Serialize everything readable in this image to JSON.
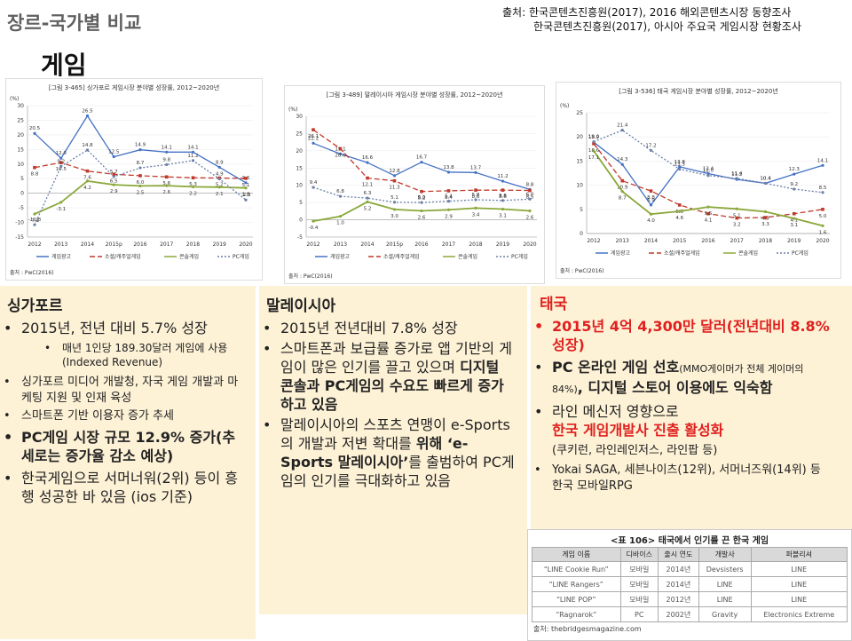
{
  "header": {
    "top_label": "장르-국가별 비교",
    "title": "게임",
    "source_line1": "출처: 한국콘텐츠진흥원(2017), 2016 해외콘텐츠시장 동향조사",
    "source_line2": "한국콘텐츠진흥원(2017), 아시아 주요국 게임시장 현황조사"
  },
  "legend": {
    "pc_online": "게임광고",
    "mobile": "소셜/캐주얼게임",
    "console": "콘솔게임",
    "pc": "PC게임"
  },
  "chart_data": [
    {
      "type": "line",
      "title": "[그림 3-465] 싱가포르 게임시장 분야별 성장률, 2012~2020년",
      "unit": "(%)",
      "x": [
        "2012",
        "2013",
        "2014",
        "2015p",
        "2016",
        "2017",
        "2018",
        "2019",
        "2020"
      ],
      "ylim": [
        -15,
        30
      ],
      "yticks": [
        "30",
        "25",
        "20",
        "15",
        "10",
        "5",
        "0",
        "-5",
        "-10",
        "-15"
      ],
      "source": "출처 : PwC(2016)",
      "series": [
        {
          "name": "게임광고",
          "color": "#4472c4",
          "values": [
            20.5,
            12.0,
            26.5,
            12.5,
            14.9,
            14.1,
            14.1,
            8.9,
            3.6
          ],
          "labels": [
            "20.5",
            "12.0",
            "26.5",
            "12.5",
            "14.9",
            "14.1",
            "14.1",
            "8.9",
            "3.6"
          ]
        },
        {
          "name": "소셜/캐주얼게임",
          "color": "#c0392b",
          "values": [
            8.8,
            10.5,
            7.6,
            6.5,
            6.0,
            5.6,
            5.3,
            5.2,
            5.1
          ],
          "labels": [
            "8.8",
            "10.5",
            "7.6",
            "6.5",
            "6.0",
            "5.6",
            "5.3",
            "5.2",
            "5.1"
          ]
        },
        {
          "name": "콘솔게임",
          "color": "#8aa83a",
          "values": [
            -7.1,
            -3.1,
            4.2,
            2.9,
            2.5,
            2.6,
            2.2,
            2.1,
            1.8
          ],
          "labels": [
            "-7.1",
            "-3.1",
            "4.2",
            "2.9",
            "2.5",
            "2.6",
            "2.2",
            "2.1",
            "1.8"
          ]
        },
        {
          "name": "PC게임",
          "color": "#6b7fa8",
          "values": [
            -10.8,
            9.2,
            14.8,
            5.7,
            8.7,
            9.8,
            11.2,
            4.9,
            -2.3
          ],
          "labels": [
            "-10.8",
            "9.2",
            "14.8",
            "5.7",
            "8.7",
            "9.8",
            "11.2",
            "4.9",
            "-2.3"
          ]
        }
      ]
    },
    {
      "type": "line",
      "title": "[그림 3-489] 말레이시아 게임시장 분야별 성장률, 2012~2020년",
      "unit": "(%)",
      "x": [
        "2012",
        "2013",
        "2014",
        "2015p",
        "2016",
        "2017",
        "2018",
        "2019",
        "2020"
      ],
      "ylim": [
        -5,
        30
      ],
      "yticks": [
        "30",
        "25",
        "20",
        "15",
        "10",
        "5",
        "0",
        "-5"
      ],
      "source": "출처 : PwC(2016)",
      "series": [
        {
          "name": "게임광고",
          "color": "#4472c4",
          "values": [
            22.2,
            19.1,
            16.6,
            12.8,
            16.7,
            13.8,
            13.7,
            11.2,
            8.8
          ],
          "labels": [
            "22.2",
            "19.1",
            "16.6",
            "12.8",
            "16.7",
            "13.8",
            "13.7",
            "11.2",
            "8.8"
          ]
        },
        {
          "name": "소셜/캐주얼게임",
          "color": "#c0392b",
          "values": [
            26.1,
            20.6,
            12.1,
            11.3,
            8.2,
            8.4,
            8.6,
            8.6,
            8.5
          ],
          "labels": [
            "26.1",
            "20.6",
            "12.1",
            "11.3",
            "8.2",
            "8.4",
            "8.6",
            "8.6",
            "8.5"
          ]
        },
        {
          "name": "콘솔게임",
          "color": "#8aa83a",
          "values": [
            -0.4,
            1.0,
            5.2,
            3.0,
            2.6,
            2.9,
            3.4,
            3.1,
            2.6
          ],
          "labels": [
            "-0.4",
            "1.0",
            "5.2",
            "3.0",
            "2.6",
            "2.9",
            "3.4",
            "3.1",
            "2.6"
          ]
        },
        {
          "name": "PC게임",
          "color": "#6b7fa8",
          "values": [
            9.4,
            6.8,
            6.3,
            5.1,
            5.0,
            5.4,
            5.8,
            5.6,
            6.0
          ],
          "labels": [
            "9.4",
            "6.8",
            "6.3",
            "5.1",
            "5.0",
            "5.4",
            "5.8",
            "5.6",
            "6.0"
          ]
        }
      ]
    },
    {
      "type": "line",
      "title": "[그림 3-536] 태국 게임시장 분야별 성장률, 2012~2020년",
      "unit": "(%)",
      "x": [
        "2012",
        "2013",
        "2014",
        "2015",
        "2016",
        "2017",
        "2018",
        "2019",
        "2020"
      ],
      "ylim": [
        0,
        25
      ],
      "yticks": [
        "25",
        "20",
        "15",
        "10",
        "5",
        "0"
      ],
      "source": "출처 : PwC(2016)",
      "series": [
        {
          "name": "게임광고",
          "color": "#4472c4",
          "values": [
            18.9,
            14.3,
            5.9,
            13.8,
            12.4,
            11.2,
            10.4,
            12.3,
            14.1
          ],
          "labels": [
            "18.9",
            "14.3",
            "5.9",
            "13.8",
            "12.4",
            "11.2",
            "10.4",
            "12.3",
            "14.1"
          ]
        },
        {
          "name": "소셜/캐주얼게임",
          "color": "#c0392b",
          "values": [
            18.6,
            10.9,
            8.8,
            5.9,
            4.1,
            3.2,
            3.3,
            4.1,
            5.0
          ],
          "labels": [
            "18.6",
            "10.9",
            "8.8",
            "5.9",
            "4.1",
            "3.2",
            "3.3",
            "4.1",
            "5.0"
          ]
        },
        {
          "name": "콘솔게임",
          "color": "#8aa83a",
          "values": [
            17.1,
            8.7,
            4.0,
            4.6,
            5.5,
            5.1,
            4.5,
            3.1,
            1.6
          ],
          "labels": [
            "17.1",
            "8.7",
            "4.0",
            "4.6",
            "5.5",
            "5.1",
            "4.5",
            "3.1",
            "1.6"
          ]
        },
        {
          "name": "PC게임",
          "color": "#6b7fa8",
          "values": [
            19.0,
            21.4,
            17.2,
            13.3,
            12.0,
            11.4,
            10.4,
            9.2,
            8.5
          ],
          "labels": [
            "19.0",
            "21.4",
            "17.2",
            "13.3",
            "12.0",
            "11.4",
            "10.4",
            "9.2",
            "8.5"
          ]
        }
      ]
    }
  ],
  "singapore": {
    "title": "싱가포르",
    "b1": "2015년, 전년 대비 5.7% 성장",
    "b1_sub": "매년 1인당 189.30달러 게임에 사용(Indexed Revenue)",
    "b2": "싱가포르 미디어 개발청, 자국 게임 개발과 마케팅 지원 및 인재 육성",
    "b3": "스마트폰 기반 이용자 증가 추세",
    "b4": "PC게임 시장 규모 12.9% 증가(추세로는 증가율 감소 예상)",
    "b5": "한국게임으로 서머너워(2위) 등이 흥행 성공한 바 있음 (ios 기준)"
  },
  "malaysia": {
    "title": "말레이시아",
    "b1": "2015년 전년대비 7.8% 성장",
    "b2_plain": "스마트폰과 보급률 증가로 앱 기반의 게임이 많은 인기를 끌고 있으며 ",
    "b2_bold": "디지털 콘솔과 PC게임의 수요도 빠르게 증가하고 있음",
    "b3_a": "말레이시아의 스포츠 연맹이 e-Sports의 개발과 저변 확대를 ",
    "b3_b": "위해 ‘e-Sports 말레이시아’",
    "b3_c": "를 출범하여 PC게임의 인기를 극대화하고 있음"
  },
  "thailand": {
    "title": "태국",
    "b1": "2015년 4억 4,300만 달러(전년대비 8.8% 성장)",
    "b2_a": "PC 온라인 게임 선호",
    "b2_b": "(MMO게이머가 전체 게이머의 84%)",
    "b2_c": ", 디지털 스토어 이용에도 익숙함",
    "b3_a": "라인 메신저 영향으로",
    "b3_b": "한국 게임개발사 진출 활성화",
    "b3_c": "(쿠키런, 라인레인저스, 라인팝 등)",
    "b4": "Yokai SAGA, 세븐나이츠(12위), 서머너즈워(14위) 등 한국 모바일RPG"
  },
  "table": {
    "title": "<표 106> 태국에서 인기를 끈 한국 게임",
    "headers": [
      "게임 이름",
      "디바이스",
      "출시 연도",
      "개발사",
      "퍼블리셔"
    ],
    "rows": [
      [
        "“LINE Cookie Run”",
        "모바일",
        "2014년",
        "Devsisters",
        "LINE"
      ],
      [
        "“LINE Rangers”",
        "모바일",
        "2014년",
        "LINE",
        "LINE"
      ],
      [
        "“LINE POP”",
        "모바일",
        "2012년",
        "LINE",
        "LINE"
      ],
      [
        "“Ragnarok”",
        "PC",
        "2002년",
        "Gravity",
        "Electronics Extreme"
      ]
    ],
    "source": "출처: thebridgesmagazine.com"
  }
}
